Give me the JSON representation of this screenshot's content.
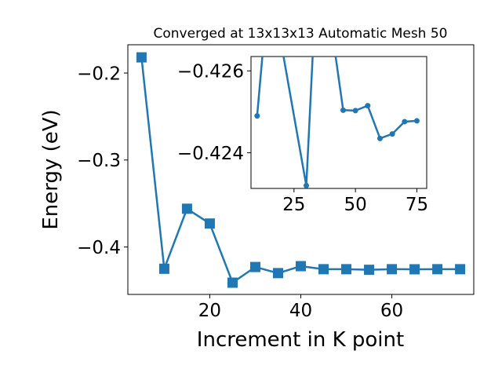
{
  "chart_data": [
    {
      "type": "line",
      "title": "Converged at 13x13x13 Automatic Mesh 50",
      "xlabel": "Increment in K point",
      "ylabel": "Energy (eV)",
      "xlim": [
        2,
        78
      ],
      "ylim": [
        -0.4545,
        -0.1675
      ],
      "xticks": [
        20,
        40,
        60
      ],
      "xtick_labels": [
        "20",
        "40",
        "60"
      ],
      "yticks": [
        -0.2,
        -0.3,
        -0.4
      ],
      "ytick_labels": [
        "−0.2",
        "−0.3",
        "−0.4"
      ],
      "marker": "square",
      "color": "#1f77b4",
      "grid": false,
      "x": [
        5,
        10,
        15,
        20,
        25,
        30,
        35,
        40,
        45,
        50,
        55,
        60,
        65,
        70,
        75
      ],
      "y": [
        -0.182,
        -0.425,
        -0.356,
        -0.373,
        -0.441,
        -0.423,
        -0.43,
        -0.422,
        -0.4255,
        -0.4255,
        -0.4262,
        -0.4255,
        -0.4256,
        -0.4255,
        -0.4255
      ]
    },
    {
      "type": "line",
      "title": "",
      "xlabel": "",
      "ylabel": "",
      "inset": true,
      "xlim": [
        7.5,
        79
      ],
      "ylim": [
        -0.42313,
        -0.42635
      ],
      "xticks": [
        25,
        50,
        75
      ],
      "xtick_labels": [
        "25",
        "50",
        "75"
      ],
      "yticks": [
        -0.426,
        -0.424
      ],
      "ytick_labels": [
        "−0.426",
        "−0.424"
      ],
      "marker": "circle",
      "color": "#1f77b4",
      "grid": false,
      "x": [
        10,
        15,
        30,
        35,
        45,
        50,
        55,
        60,
        65,
        70,
        75
      ],
      "y": [
        -0.4249,
        -0.4283,
        -0.4232,
        -0.4293,
        -0.42504,
        -0.42503,
        -0.42515,
        -0.42435,
        -0.42446,
        -0.42476,
        -0.42478
      ]
    }
  ]
}
